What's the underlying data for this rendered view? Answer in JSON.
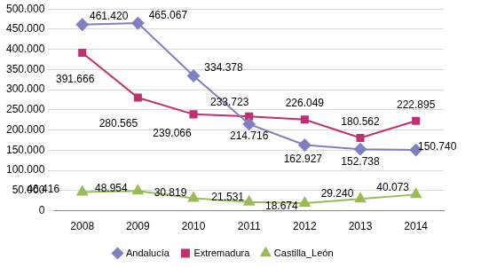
{
  "chart_data": {
    "type": "line",
    "categories": [
      "2008",
      "2009",
      "2010",
      "2011",
      "2012",
      "2013",
      "2014"
    ],
    "series": [
      {
        "name": "Andalucía",
        "color": "#7F7FC2",
        "marker": "diamond",
        "values": [
          461420,
          465067,
          334378,
          214716,
          162927,
          152738,
          150740
        ],
        "value_labels": [
          "461.420",
          "465.067",
          "334.378",
          "214.716",
          "162.927",
          "152.738",
          "150.740"
        ]
      },
      {
        "name": "Extremadura",
        "color": "#C0306E",
        "marker": "square",
        "values": [
          391666,
          280565,
          239066,
          233723,
          226049,
          180562,
          222895
        ],
        "value_labels": [
          "391.666",
          "280.565",
          "239.066",
          "233.723",
          "226.049",
          "180.562",
          "222.895"
        ]
      },
      {
        "name": "Castilla_León",
        "color": "#9BBB59",
        "marker": "triangle",
        "values": [
          46416,
          48954,
          30819,
          21531,
          18674,
          29240,
          40073
        ],
        "value_labels": [
          "46.416",
          "48.954",
          "30.819",
          "21.531",
          "18.674",
          "29.240",
          "40.073"
        ]
      }
    ],
    "ylim": [
      0,
      500000
    ],
    "yticks": [
      0,
      {
        "value": 50000,
        "label": "50.000"
      },
      {
        "value": 100000,
        "label": "100.000"
      },
      {
        "value": 150000,
        "label": "150.000"
      },
      {
        "value": 200000,
        "label": "200.000"
      },
      {
        "value": 250000,
        "label": "250.000"
      },
      {
        "value": 300000,
        "label": "300.000"
      },
      {
        "value": 350000,
        "label": "350.000"
      },
      {
        "value": 400000,
        "label": "400.000"
      },
      {
        "value": 450000,
        "label": "450.000"
      },
      {
        "value": 500000,
        "label": "500.000"
      }
    ],
    "grid": true,
    "legend": "bottom",
    "data_labels": true
  }
}
